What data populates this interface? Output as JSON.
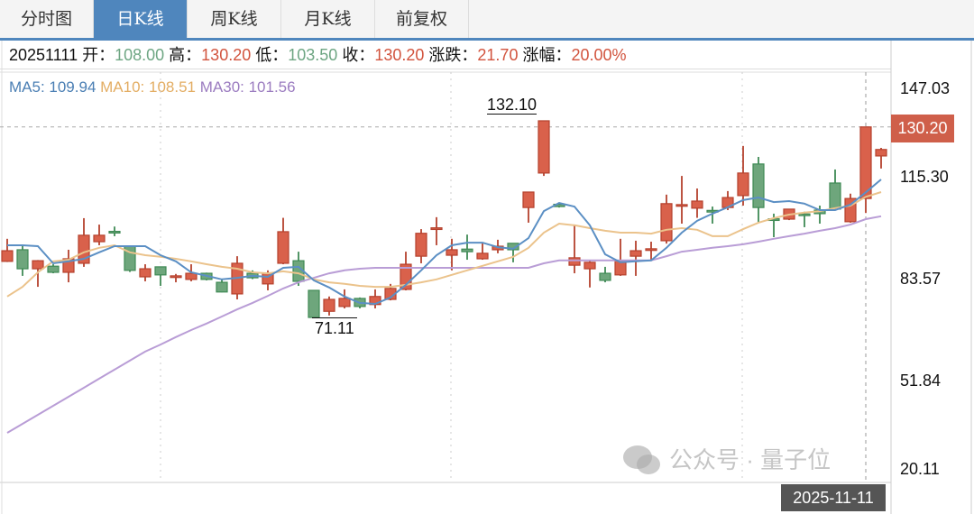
{
  "tabs": [
    {
      "label": "分时图",
      "active": false
    },
    {
      "label": "日K线",
      "active": true
    },
    {
      "label": "周K线",
      "active": false
    },
    {
      "label": "月K线",
      "active": false
    },
    {
      "label": "前复权",
      "active": false
    }
  ],
  "info": {
    "date": "20251111",
    "open_label": "开：",
    "open": "108.00",
    "high_label": "高：",
    "high": "130.20",
    "low_label": "低：",
    "low": "103.50",
    "close_label": "收：",
    "close": "130.20",
    "change_label": "涨跌：",
    "change": "21.70",
    "pct_label": "涨幅：",
    "pct": "20.00%"
  },
  "ma": {
    "ma5": "MA5: 109.94",
    "ma10": "MA10: 108.51",
    "ma30": "MA30: 101.56"
  },
  "watermark": "公众号 · 量子位",
  "chart_data": {
    "type": "candlestick",
    "ylim": [
      20.11,
      147.03
    ],
    "yticks": [
      "147.03",
      "115.30",
      "83.57",
      "51.84",
      "20.11"
    ],
    "grid": "dashed vertical",
    "colors": {
      "up": "#d9614b",
      "up_border": "#b5412d",
      "down": "#6ea67c",
      "down_border": "#3f8a55",
      "ma5": "#5b8fc4",
      "ma10": "#ebc38c",
      "ma30": "#b99dd6"
    },
    "annotations": {
      "max": "132.10",
      "min": "71.11"
    },
    "crosshair": {
      "date": "2025-11-11",
      "price": "130.20",
      "index": 56
    },
    "ohlc": [
      [
        88.5,
        91.8,
        95.5,
        88.3
      ],
      [
        92.1,
        86.2,
        93.3,
        84.0
      ],
      [
        86.2,
        88.7,
        88.9,
        80.6
      ],
      [
        87.0,
        85.1,
        87.6,
        84.8
      ],
      [
        85.1,
        89.3,
        92.1,
        82.0
      ],
      [
        87.9,
        96.6,
        101.9,
        86.8
      ],
      [
        94.6,
        96.6,
        99.9,
        93.5
      ],
      [
        97.8,
        97.5,
        99.3,
        96.3
      ],
      [
        93.2,
        85.7,
        93.3,
        85.2
      ],
      [
        83.7,
        86.2,
        87.6,
        82.3
      ],
      [
        86.8,
        84.3,
        86.8,
        80.9
      ],
      [
        83.7,
        84.0,
        84.6,
        82.0
      ],
      [
        82.9,
        84.8,
        87.6,
        82.3
      ],
      [
        84.8,
        82.9,
        85.0,
        82.6
      ],
      [
        82.0,
        79.0,
        83.0,
        78.9
      ],
      [
        78.4,
        87.9,
        90.1,
        76.7
      ],
      [
        84.8,
        83.4,
        85.7,
        83.0
      ],
      [
        81.5,
        84.8,
        85.7,
        79.5
      ],
      [
        87.9,
        97.7,
        102.0,
        87.6
      ],
      [
        88.7,
        82.3,
        91.5,
        80.9
      ],
      [
        79.5,
        71.1,
        79.5,
        71.1
      ],
      [
        73.0,
        76.7,
        77.6,
        71.7
      ],
      [
        74.5,
        77.0,
        79.8,
        73.9
      ],
      [
        77.0,
        74.5,
        77.3,
        73.9
      ],
      [
        75.1,
        77.6,
        79.8,
        73.9
      ],
      [
        76.7,
        80.1,
        81.5,
        76.4
      ],
      [
        79.8,
        87.6,
        91.5,
        79.5
      ],
      [
        90.1,
        97.2,
        98.5,
        87.9
      ],
      [
        98.5,
        98.9,
        102.2,
        93.5
      ],
      [
        90.4,
        92.1,
        95.5,
        85.7
      ],
      [
        92.3,
        91.5,
        96.8,
        89.0
      ],
      [
        89.3,
        91.0,
        94.4,
        89.0
      ],
      [
        92.1,
        93.2,
        95.2,
        91.0
      ],
      [
        94.1,
        92.1,
        94.1,
        88.2
      ],
      [
        105.2,
        110.0,
        110.0,
        100.5
      ],
      [
        115.9,
        132.1,
        132.1,
        115.0
      ],
      [
        106.2,
        105.5,
        106.5,
        105.2
      ],
      [
        87.3,
        89.6,
        99.9,
        84.8
      ],
      [
        86.2,
        88.2,
        89.0,
        80.4
      ],
      [
        84.8,
        82.6,
        86.8,
        82.0
      ],
      [
        84.3,
        88.7,
        95.5,
        84.0
      ],
      [
        90.1,
        91.8,
        94.9,
        84.0
      ],
      [
        92.1,
        92.4,
        94.6,
        89.0
      ],
      [
        94.9,
        106.4,
        109.2,
        94.0
      ],
      [
        105.8,
        106.1,
        115.0,
        100.2
      ],
      [
        105.0,
        107.2,
        111.1,
        102.0
      ],
      [
        104.3,
        104.0,
        105.5,
        100.2
      ],
      [
        105.2,
        108.3,
        110.3,
        104.4
      ],
      [
        108.9,
        115.9,
        124.3,
        105.8
      ],
      [
        118.7,
        105.2,
        120.9,
        100.5
      ],
      [
        101.7,
        101.6,
        103.3,
        96.0
      ],
      [
        101.6,
        104.7,
        104.7,
        101.3
      ],
      [
        103.2,
        103.0,
        103.9,
        99.1
      ],
      [
        104.4,
        103.3,
        105.8,
        100.2
      ],
      [
        112.8,
        104.7,
        117.0,
        104.4
      ],
      [
        100.8,
        108.0,
        109.5,
        100.5
      ],
      [
        108.0,
        130.2,
        130.2,
        103.5
      ],
      [
        121.2,
        123.2,
        123.7,
        117.3
      ]
    ],
    "ma5": [
      93.5,
      93.5,
      93.2,
      87.9,
      88.5,
      89.3,
      91.3,
      93.2,
      93.2,
      93.2,
      90.4,
      88.5,
      85.1,
      84.0,
      82.9,
      83.4,
      84.0,
      83.7,
      86.5,
      86.8,
      82.6,
      80.4,
      77.6,
      75.6,
      75.3,
      77.3,
      81.2,
      85.7,
      90.4,
      93.5,
      94.3,
      94.3,
      92.9,
      92.4,
      95.7,
      104.1,
      106.6,
      105.5,
      99.7,
      90.7,
      88.2,
      88.5,
      88.8,
      92.7,
      97.4,
      101.1,
      103.3,
      105.3,
      107.5,
      108.3,
      106.9,
      107.2,
      106.4,
      104.4,
      104.4,
      106.1,
      109.9,
      113.9
    ],
    "ma10": [
      77.6,
      80.6,
      85.1,
      88.5,
      89.0,
      91.3,
      92.7,
      93.5,
      91.3,
      90.4,
      89.9,
      89.3,
      88.5,
      87.6,
      86.8,
      86.2,
      85.1,
      84.8,
      85.4,
      84.8,
      82.9,
      82.0,
      81.5,
      80.9,
      80.6,
      80.6,
      81.2,
      82.0,
      82.9,
      84.3,
      85.7,
      87.1,
      88.5,
      89.9,
      92.7,
      97.4,
      100.2,
      99.7,
      98.8,
      98.0,
      97.4,
      97.4,
      97.1,
      98.3,
      98.8,
      98.3,
      96.3,
      96.3,
      98.5,
      100.5,
      101.9,
      103.0,
      103.6,
      104.1,
      105.0,
      105.8,
      108.5,
      110.0
    ],
    "ma30": [
      35.3,
      38.1,
      40.9,
      43.7,
      46.5,
      49.3,
      52.1,
      54.9,
      57.7,
      60.5,
      62.7,
      65.0,
      67.2,
      69.2,
      71.4,
      73.6,
      75.6,
      77.8,
      80.1,
      82.0,
      83.4,
      84.8,
      85.7,
      86.2,
      86.5,
      86.5,
      86.5,
      86.5,
      86.5,
      86.5,
      86.5,
      86.5,
      86.5,
      86.5,
      86.5,
      87.9,
      88.8,
      88.8,
      88.8,
      88.8,
      88.8,
      88.8,
      88.8,
      90.1,
      91.5,
      92.1,
      92.7,
      93.2,
      93.8,
      94.6,
      95.5,
      96.3,
      97.1,
      98.0,
      98.8,
      99.9,
      101.6,
      102.5
    ]
  }
}
